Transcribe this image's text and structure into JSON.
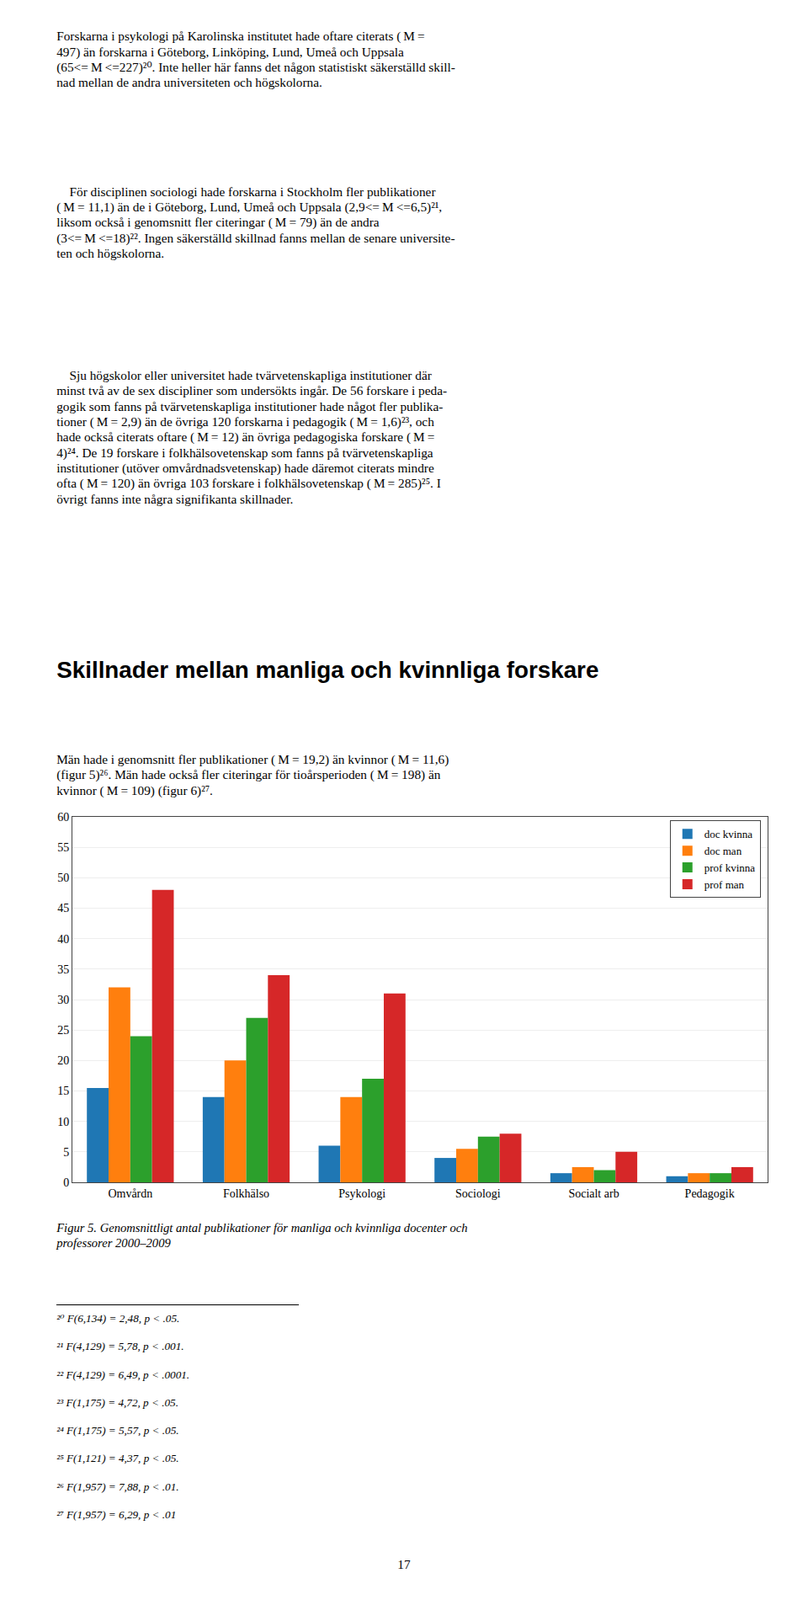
{
  "chart_data": {
    "type": "bar",
    "title": "Figur 5. Genomsnittligt antal publikationer för manliga och kvinnliga docenter och\nprofessorer 2000–2009",
    "categories": [
      "Omvårdn",
      "Folkhälso",
      "Psykologi",
      "Sociologi",
      "Socialt arb",
      "Pedagogik"
    ],
    "series": [
      {
        "name": "doc kvinna",
        "values": [
          15.5,
          14.0,
          6.0,
          4.0,
          1.5,
          1.0
        ]
      },
      {
        "name": "doc man",
        "values": [
          32.0,
          20.0,
          14.0,
          5.5,
          2.5,
          1.5
        ]
      },
      {
        "name": "prof kvinna",
        "values": [
          24.0,
          27.0,
          17.0,
          7.5,
          2.0,
          1.5
        ]
      },
      {
        "name": "prof man",
        "values": [
          48.0,
          34.0,
          31.0,
          8.0,
          5.0,
          2.5
        ]
      }
    ],
    "ylim": [
      0,
      60
    ],
    "yticks": [
      0,
      5,
      10,
      15,
      20,
      25,
      30,
      35,
      40,
      45,
      50,
      55,
      60
    ],
    "grid": true,
    "legend": "upper right",
    "annotations": [
      "Forskarna i psykologi på Karolinska institutet hade oftare citerats ( M =\n497) än forskarna i Göteborg, Linköping, Lund, Umeå och Uppsala\n(65<= M <=227)²⁰. Inte heller här fanns det någon statistiskt säkerställd skill-\nnad mellan de andra universiteten och högskolorna.",
      "    För disciplinen sociologi hade forskarna i Stockholm fler publikationer\n( M = 11,1) än de i Göteborg, Lund, Umeå och Uppsala (2,9<= M <=6,5)²¹,\nliksom också i genomsnitt fler citeringar ( M = 79) än de andra\n(3<= M <=18)²². Ingen säkerställd skillnad fanns mellan de senare universite-\nten och högskolorna.",
      "    Sju högskolor eller universitet hade tvärvetenskapliga institutioner där\nminst två av de sex discipliner som undersökts ingår. De 56 forskare i peda-\ngogik som fanns på tvärvetenskapliga institutioner hade något fler publika-\ntioner ( M = 2,9) än de övriga 120 forskarna i pedagogik ( M = 1,6)²³, och\nhade också citerats oftare ( M = 12) än övriga pedagogiska forskare ( M =\n4)²⁴. De 19 forskare i folkhälsovetenskap som fanns på tvärvetenskapliga\ninstitutioner (utöver omvårdnadsvetenskap) hade däremot citerats mindre\nofta ( M = 120) än övriga 103 forskare i folkhälsovetenskap ( M = 285)²⁵. I\növrigt fanns inte några signifikanta skillnader.",
      "Skillnader mellan manliga och kvinnliga forskare",
      "Män hade i genomsnitt fler publikationer ( M = 19,2) än kvinnor ( M = 11,6)\n(figur 5)²⁶. Män hade också fler citeringar för tioårsperioden ( M = 198) än\nkvinnor ( M = 109) (figur 6)²⁷.",
      "²⁰ F(6,134) = 2,48, p < .05.",
      "²¹ F(4,129) = 5,78, p < .001.",
      "²² F(4,129) = 6,49, p < .0001.",
      "²³ F(1,175) = 4,72, p < .05.",
      "²⁴ F(1,175) = 5,57, p < .05.",
      "²⁵ F(1,121) = 4,37, p < .05.",
      "²⁶ F(1,957) = 7,88, p < .01.",
      "²⁷ F(1,957) = 6,29, p < .01",
      "17"
    ]
  }
}
